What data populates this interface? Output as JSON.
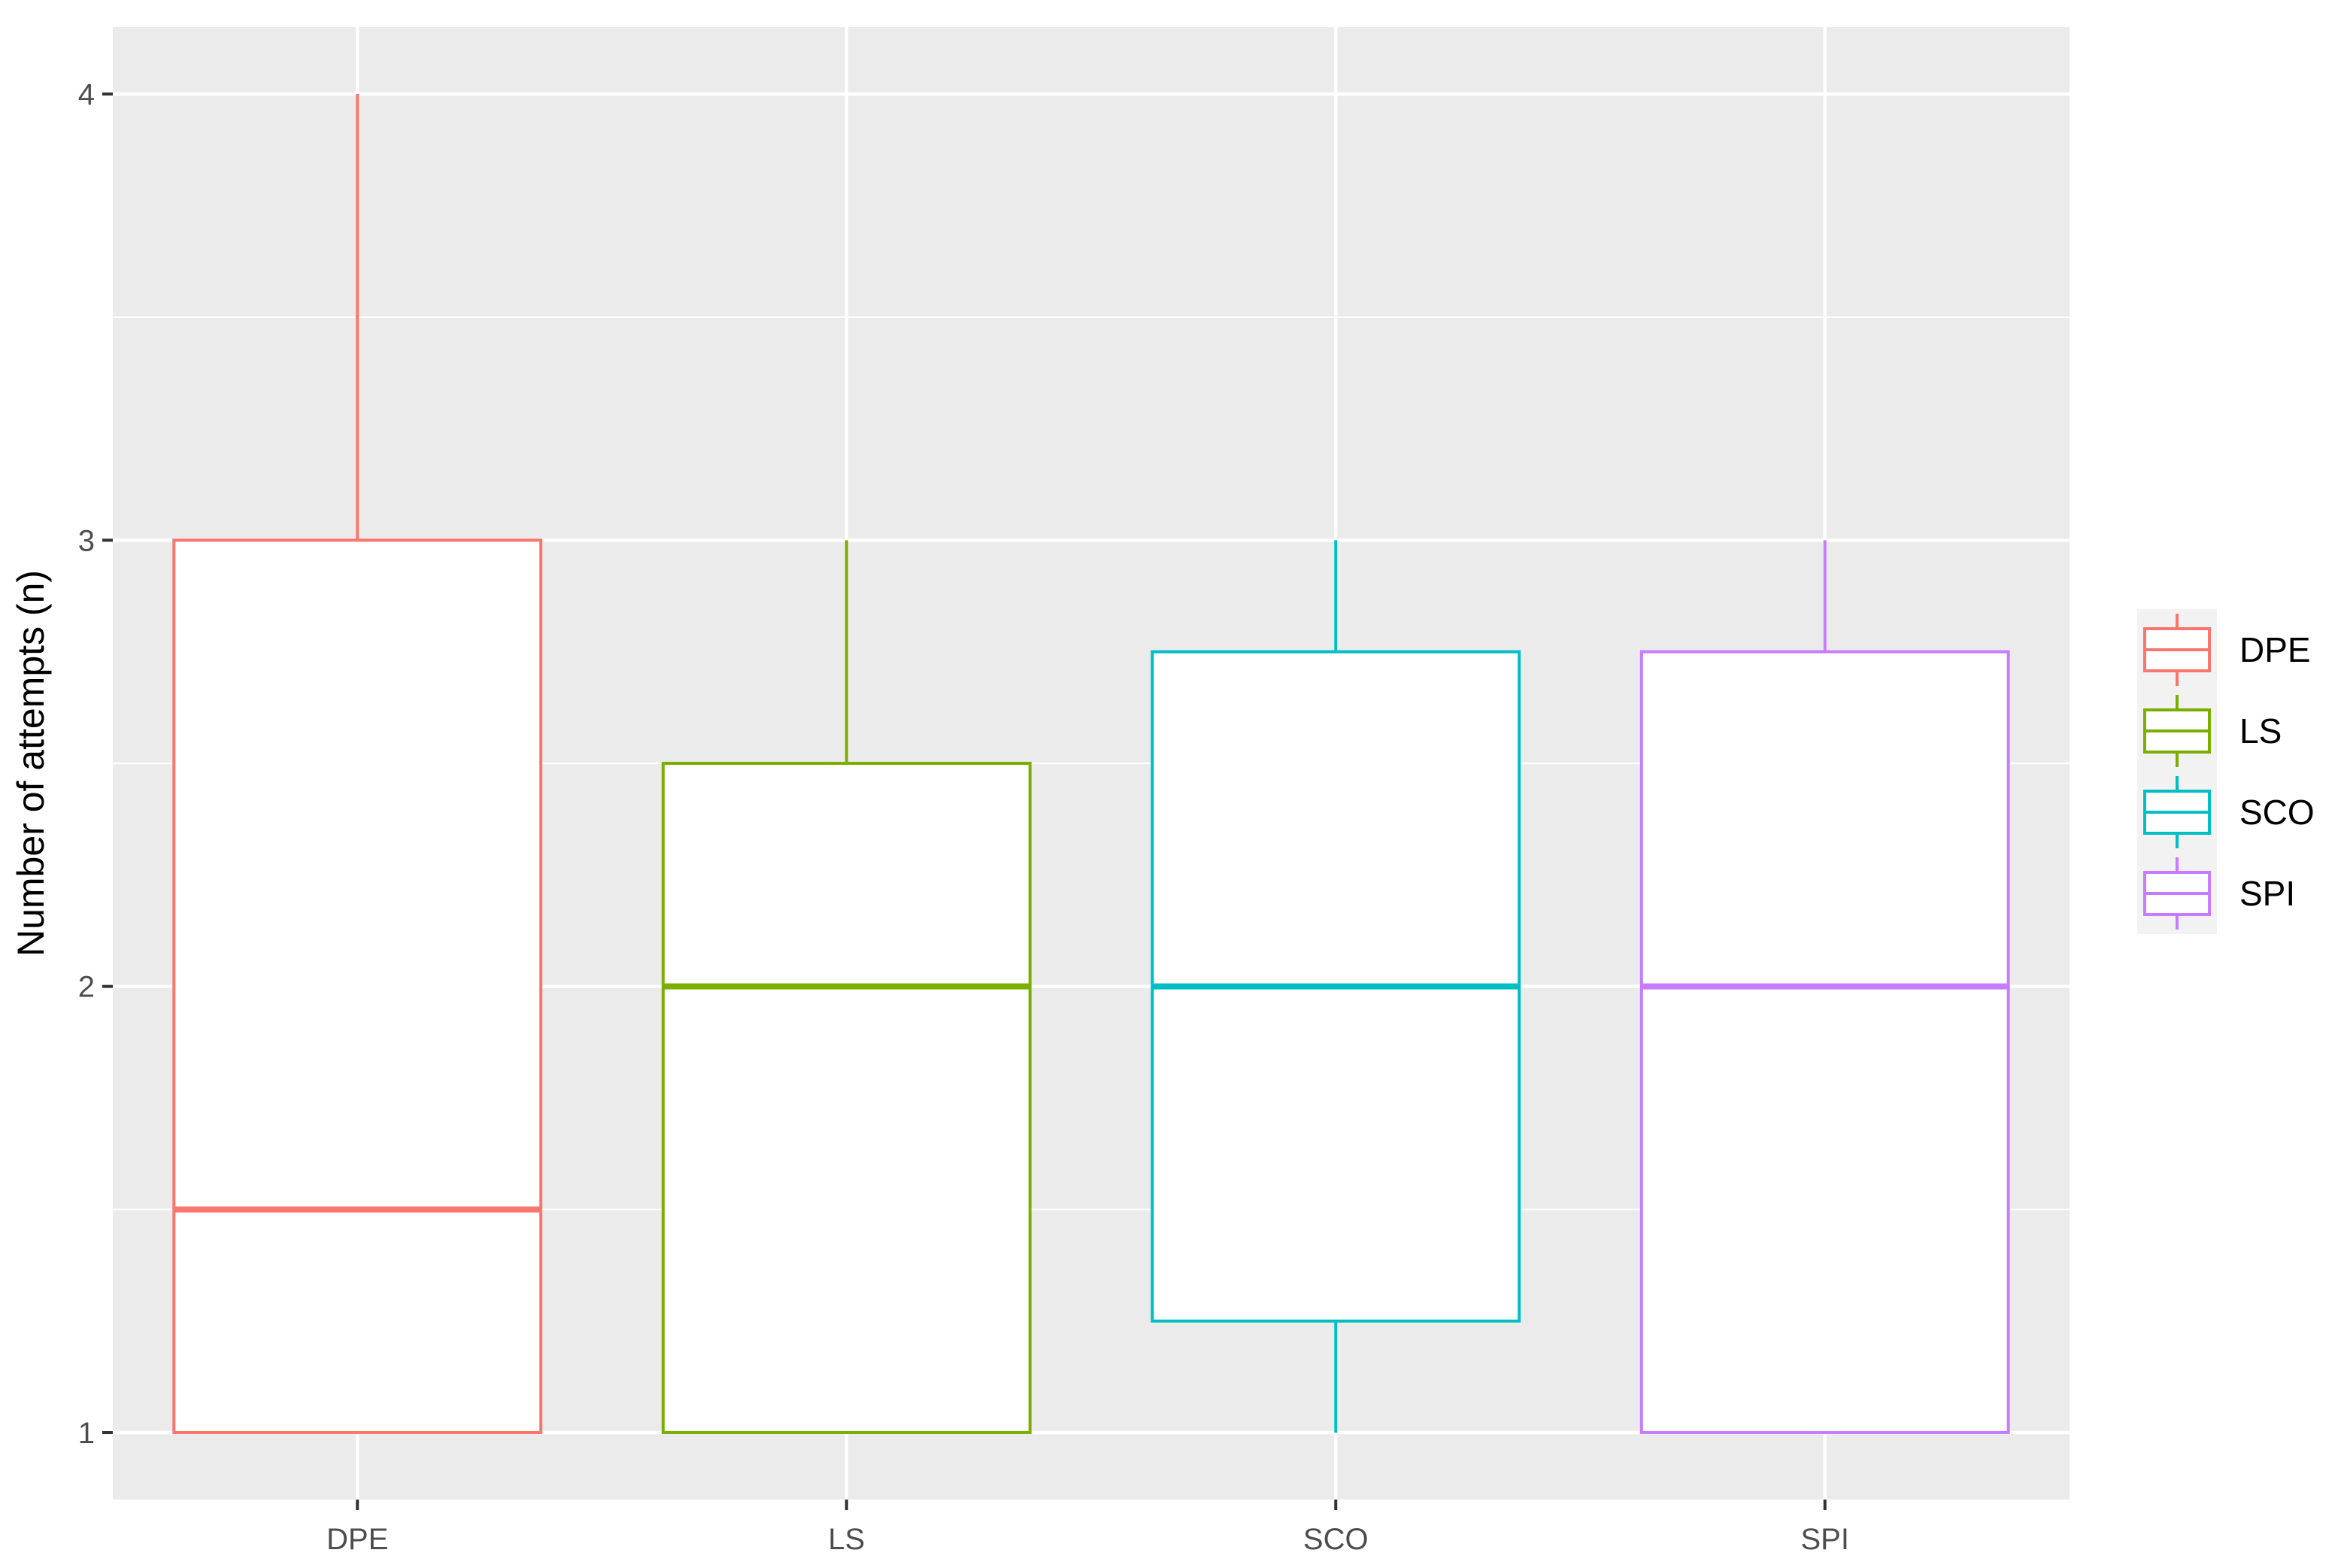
{
  "chart_data": {
    "type": "boxplot",
    "title": "",
    "xlabel": "",
    "ylabel": "Number of attempts (n)",
    "ylim": [
      0.85,
      4.15
    ],
    "yticks": [
      1,
      2,
      3,
      4
    ],
    "ytick_labels": [
      "1",
      "2",
      "3",
      "4"
    ],
    "grid": true,
    "legend_position": "right",
    "categories": [
      "DPE",
      "LS",
      "SCO",
      "SPI"
    ],
    "series": [
      {
        "name": "DPE",
        "color": "#F8766D",
        "min": 1,
        "q1": 1,
        "median": 1.5,
        "q3": 3,
        "max": 4
      },
      {
        "name": "LS",
        "color": "#7CAE00",
        "min": 1,
        "q1": 1,
        "median": 2,
        "q3": 2.5,
        "max": 3
      },
      {
        "name": "SCO",
        "color": "#00BFC4",
        "min": 1,
        "q1": 1.25,
        "median": 2,
        "q3": 2.75,
        "max": 3
      },
      {
        "name": "SPI",
        "color": "#C77CFF",
        "min": 1,
        "q1": 1,
        "median": 2,
        "q3": 2.75,
        "max": 3
      }
    ],
    "colors": {
      "panel": "#EBEBEB",
      "grid": "#FFFFFF",
      "tick": "#333333"
    }
  }
}
